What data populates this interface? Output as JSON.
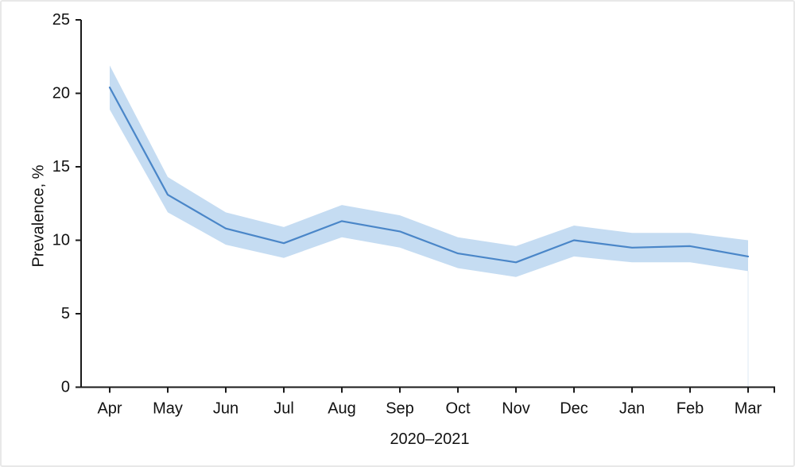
{
  "chart_data": {
    "type": "line",
    "title": "",
    "xlabel": "2020–2021",
    "ylabel": "Prevalence, %",
    "categories": [
      "Apr",
      "May",
      "Jun",
      "Jul",
      "Aug",
      "Sep",
      "Oct",
      "Nov",
      "Dec",
      "Jan",
      "Feb",
      "Mar"
    ],
    "series": [
      {
        "name": "Prevalence",
        "values": [
          20.4,
          13.1,
          10.8,
          9.8,
          11.3,
          10.6,
          9.1,
          8.5,
          10.0,
          9.5,
          9.6,
          8.9
        ]
      },
      {
        "name": "CI lower",
        "values": [
          18.9,
          11.9,
          9.7,
          8.8,
          10.2,
          9.5,
          8.1,
          7.5,
          8.9,
          8.5,
          8.5,
          7.9
        ]
      },
      {
        "name": "CI upper",
        "values": [
          21.9,
          14.3,
          11.9,
          10.9,
          12.4,
          11.7,
          10.2,
          9.6,
          11.0,
          10.5,
          10.5,
          10.0
        ]
      }
    ],
    "ylim": [
      0,
      25
    ],
    "yticks": [
      0,
      5,
      10,
      15,
      20,
      25
    ],
    "grid": false,
    "legend": "none",
    "colors": {
      "line": "#4a86c8",
      "band": "#c5dcf2",
      "band_edge": "#dce8f6",
      "axis": "#1a1a1a",
      "text": "#111111",
      "background": "#ffffff",
      "frame_border": "#e8e8e8"
    }
  }
}
